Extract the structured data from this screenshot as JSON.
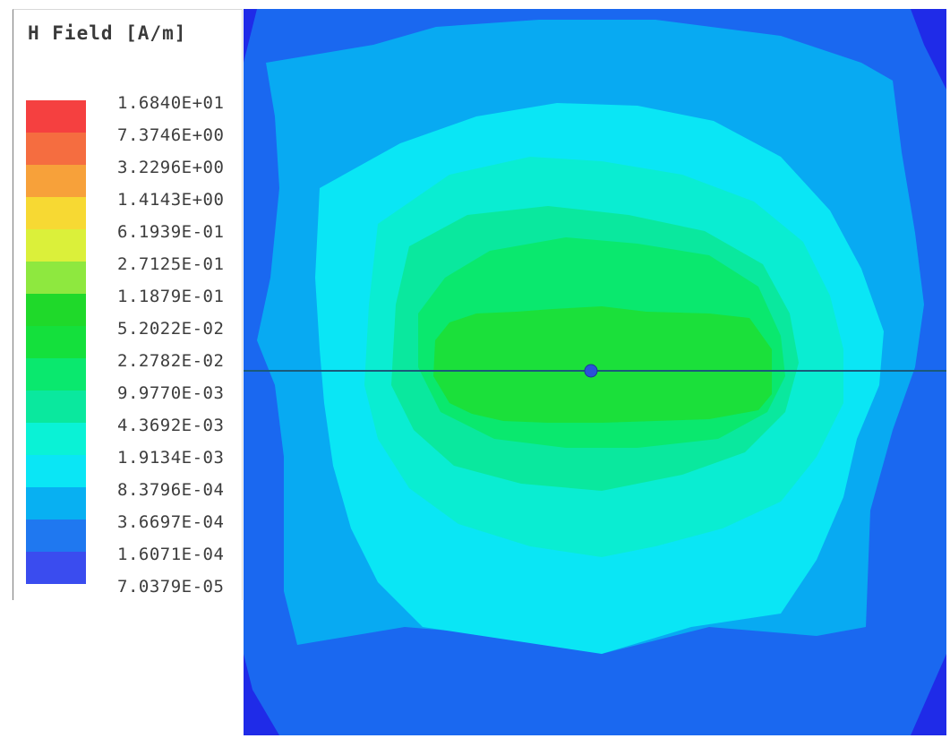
{
  "legend": {
    "title": "H Field [A/m]",
    "entries": [
      {
        "value": "1.6840E+01",
        "color": "#f54040"
      },
      {
        "value": "7.3746E+00",
        "color": "#f56d40"
      },
      {
        "value": "3.2296E+00",
        "color": "#f7a13a"
      },
      {
        "value": "1.4143E+00",
        "color": "#f7d933"
      },
      {
        "value": "6.1939E-01",
        "color": "#dbf03a"
      },
      {
        "value": "2.7125E-01",
        "color": "#8ee83f"
      },
      {
        "value": "1.1879E-01",
        "color": "#1fd92a"
      },
      {
        "value": "5.2022E-02",
        "color": "#14e03c"
      },
      {
        "value": "2.2782E-02",
        "color": "#0ae86e"
      },
      {
        "value": "9.9770E-03",
        "color": "#0ae89e"
      },
      {
        "value": "4.3692E-03",
        "color": "#0af2d6"
      },
      {
        "value": "1.9134E-03",
        "color": "#0ae6f5"
      },
      {
        "value": "8.3796E-04",
        "color": "#08b0f2"
      },
      {
        "value": "3.6697E-04",
        "color": "#1f78f0"
      },
      {
        "value": "1.6071E-04",
        "color": "#3a4cef"
      }
    ],
    "bottom_value": "7.0379E-05"
  },
  "plot": {
    "band_colors": [
      "#1f2be8",
      "#1a68f0",
      "#08aaf2",
      "#0ae6f5",
      "#0aedd2",
      "#0ae89e",
      "#0ae86e",
      "#1be03a"
    ],
    "antenna_color": "#1a5a7a",
    "feed_color": "#2a52d8"
  }
}
